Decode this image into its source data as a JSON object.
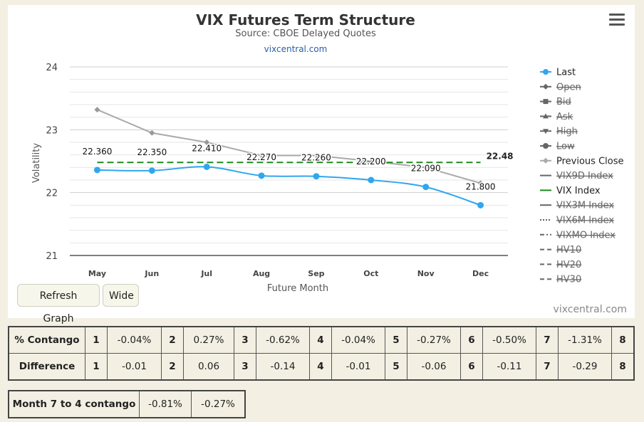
{
  "menu_icon": "hamburger-menu-icon",
  "chart_data": {
    "type": "line",
    "title": "VIX Futures Term Structure",
    "subtitle": "Source: CBOE Delayed Quotes",
    "source_link": "vixcentral.com",
    "xlabel": "Future Month",
    "ylabel": "Volatility",
    "categories": [
      "May",
      "Jun",
      "Jul",
      "Aug",
      "Sep",
      "Oct",
      "Nov",
      "Dec"
    ],
    "ylim": [
      21,
      24
    ],
    "yticks": [
      "21",
      "22",
      "23",
      "24"
    ],
    "grid": true,
    "legend_position": "right",
    "series": [
      {
        "name": "Last",
        "values": [
          22.36,
          22.35,
          22.41,
          22.27,
          22.26,
          22.2,
          22.09,
          21.8
        ],
        "labels": [
          "22.360",
          "22.350",
          "22.410",
          "22.270",
          "22.260",
          "22.200",
          "22.090",
          "21.800"
        ],
        "color": "#2fa7ef"
      },
      {
        "name": "Previous Close",
        "values": [
          23.32,
          22.95,
          22.8,
          22.59,
          22.59,
          22.5,
          22.4,
          22.15
        ],
        "color": "#aaaaaa"
      },
      {
        "name": "VIX Index",
        "values": [
          22.48,
          22.48,
          22.48,
          22.48,
          22.48,
          22.48,
          22.48,
          22.48
        ],
        "end_label": "22.48",
        "color": "#1c8a1c"
      }
    ],
    "legend": [
      {
        "name": "Last",
        "marker": "circle",
        "line": "solid",
        "color": "#2fa7ef",
        "hidden": false
      },
      {
        "name": "Open",
        "marker": "diamond",
        "line": "solid",
        "color": "#666666",
        "hidden": true
      },
      {
        "name": "Bid",
        "marker": "square",
        "line": "solid",
        "color": "#666666",
        "hidden": true
      },
      {
        "name": "Ask",
        "marker": "triangle-up",
        "line": "solid",
        "color": "#666666",
        "hidden": true
      },
      {
        "name": "High",
        "marker": "triangle-down",
        "line": "solid",
        "color": "#666666",
        "hidden": true
      },
      {
        "name": "Low",
        "marker": "circle",
        "line": "solid",
        "color": "#666666",
        "hidden": true
      },
      {
        "name": "Previous Close",
        "marker": "diamond",
        "line": "solid",
        "color": "#aaaaaa",
        "hidden": false
      },
      {
        "name": "VIX9D Index",
        "marker": "none",
        "line": "solid",
        "color": "#666666",
        "hidden": true
      },
      {
        "name": "VIX Index",
        "marker": "none",
        "line": "solid",
        "color": "#1c8a1c",
        "hidden": false
      },
      {
        "name": "VIX3M Index",
        "marker": "none",
        "line": "solid",
        "color": "#666666",
        "hidden": true
      },
      {
        "name": "VIX6M Index",
        "marker": "none",
        "line": "dotted",
        "color": "#666666",
        "hidden": true
      },
      {
        "name": "VIXMO Index",
        "marker": "none",
        "line": "dashdot",
        "color": "#666666",
        "hidden": true
      },
      {
        "name": "HV10",
        "marker": "none",
        "line": "dash",
        "color": "#666666",
        "hidden": true
      },
      {
        "name": "HV20",
        "marker": "none",
        "line": "dash",
        "color": "#666666",
        "hidden": true
      },
      {
        "name": "HV30",
        "marker": "none",
        "line": "dash",
        "color": "#666666",
        "hidden": true
      }
    ]
  },
  "buttons": {
    "refresh": "Refresh Graph",
    "wide": "Wide"
  },
  "watermark": "vixcentral.com",
  "contango_table": {
    "rows": [
      {
        "label": "% Contango",
        "cells": [
          "1",
          "-0.04%",
          "2",
          "0.27%",
          "3",
          "-0.62%",
          "4",
          "-0.04%",
          "5",
          "-0.27%",
          "6",
          "-0.50%",
          "7",
          "-1.31%",
          "8"
        ]
      },
      {
        "label": "Difference",
        "cells": [
          "1",
          "-0.01",
          "2",
          "0.06",
          "3",
          "-0.14",
          "4",
          "-0.01",
          "5",
          "-0.06",
          "6",
          "-0.11",
          "7",
          "-0.29",
          "8"
        ]
      }
    ]
  },
  "month_table": {
    "label": "Month 7 to 4 contango",
    "values": [
      "-0.81%",
      "-0.27%"
    ]
  }
}
